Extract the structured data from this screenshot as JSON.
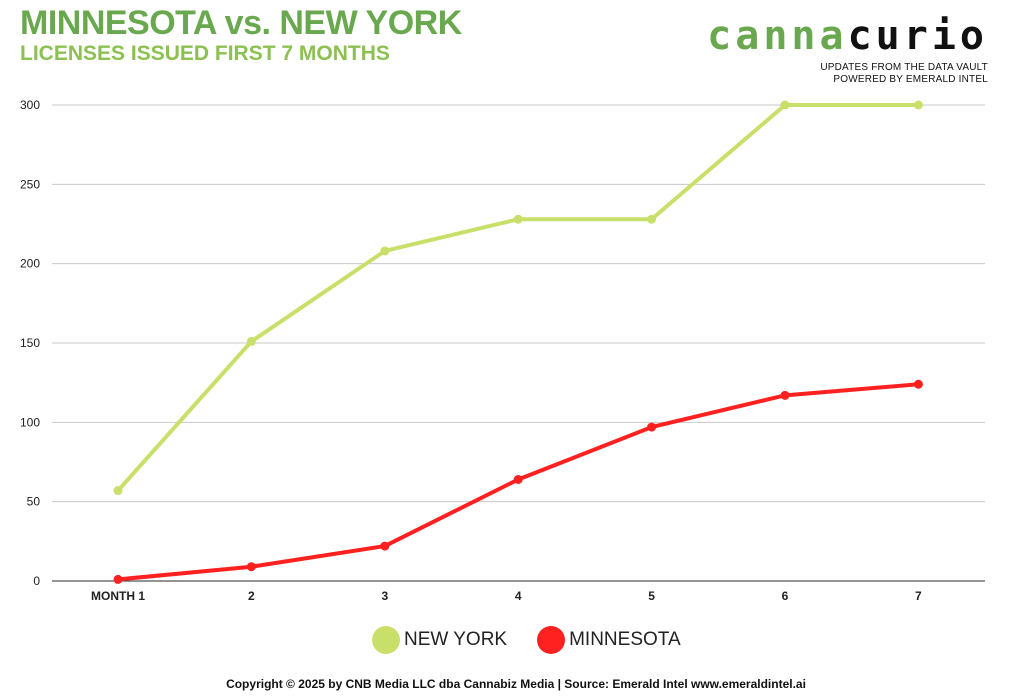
{
  "header": {
    "title": "MINNESOTA vs. NEW YORK",
    "subtitle": "LICENSES ISSUED FIRST 7 MONTHS"
  },
  "brand": {
    "part1": "canna",
    "part2": "curio",
    "line1": "UPDATES FROM THE DATA VAULT",
    "line2": "POWERED BY EMERALD INTEL"
  },
  "colors": {
    "title": "#6aa84f",
    "subtitle": "#8cc152",
    "new_york": "#c8e06a",
    "minnesota": "#ff2020",
    "grid": "#c8c8c8",
    "axis": "#555555"
  },
  "chart_data": {
    "type": "line",
    "title": "MINNESOTA vs. NEW YORK",
    "subtitle": "LICENSES ISSUED FIRST 7 MONTHS",
    "xlabel": "",
    "ylabel": "",
    "categories": [
      "MONTH 1",
      "2",
      "3",
      "4",
      "5",
      "6",
      "7"
    ],
    "ylim": [
      0,
      300
    ],
    "yticks": [
      0,
      50,
      100,
      150,
      200,
      250,
      300
    ],
    "grid": true,
    "legend_position": "bottom-center",
    "series": [
      {
        "name": "NEW YORK",
        "color": "#c8e06a",
        "values": [
          57,
          151,
          208,
          228,
          228,
          300,
          300
        ]
      },
      {
        "name": "MINNESOTA",
        "color": "#ff2020",
        "values": [
          1,
          9,
          22,
          64,
          97,
          117,
          124
        ]
      }
    ]
  },
  "footer": {
    "text": "Copyright © 2025 by CNB Media LLC dba Cannabiz Media | Source: Emerald Intel www.emeraldintel.ai"
  }
}
